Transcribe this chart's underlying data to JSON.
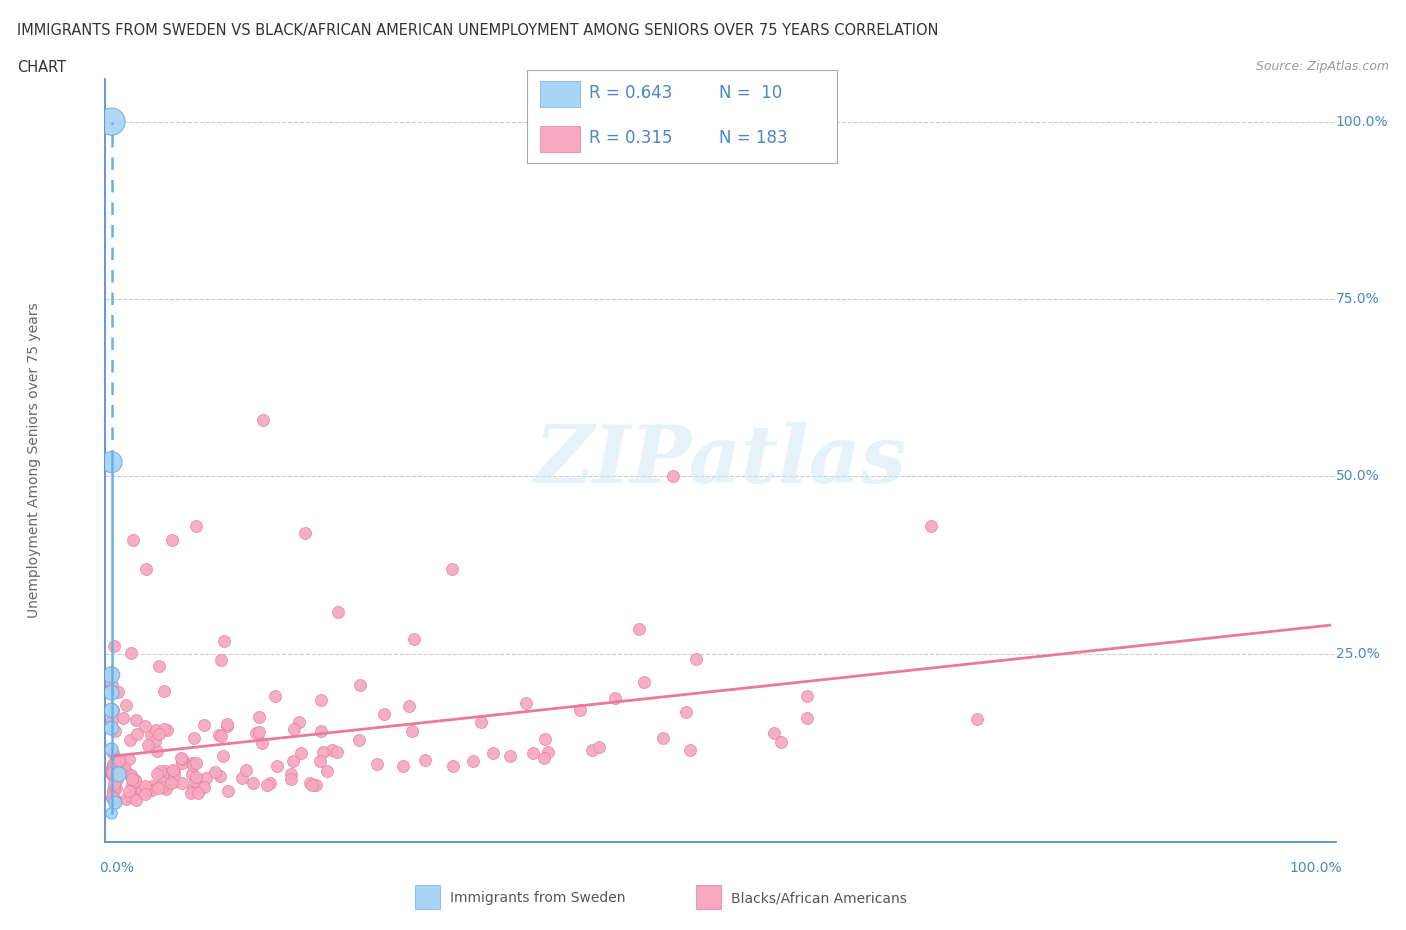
{
  "title_line1": "IMMIGRANTS FROM SWEDEN VS BLACK/AFRICAN AMERICAN UNEMPLOYMENT AMONG SENIORS OVER 75 YEARS CORRELATION",
  "title_line2": "CHART",
  "source": "Source: ZipAtlas.com",
  "ylabel": "Unemployment Among Seniors over 75 years",
  "ytick_labels": [
    "25.0%",
    "50.0%",
    "75.0%",
    "100.0%"
  ],
  "ytick_values": [
    0.25,
    0.5,
    0.75,
    1.0
  ],
  "title_color": "#333333",
  "source_color": "#999999",
  "axis_color": "#4a86c8",
  "grid_color": "#cccccc",
  "blue_scatter_color": "#a8d4f5",
  "blue_edge_color": "#6ab0e8",
  "pink_scatter_color": "#f5a8c0",
  "pink_edge_color": "#e87a9a",
  "blue_line_color": "#6ab0e8",
  "pink_line_color": "#e87a9a",
  "watermark_text": "ZIPatlas",
  "watermark_color": "#d0e8f5",
  "legend_R1": "R = 0.643",
  "legend_N1": "N =  10",
  "legend_R2": "R = 0.315",
  "legend_N2": "N = 183",
  "legend_color": "#4a86c8",
  "bottom_legend_color": "#555555",
  "blue_label": "Immigrants from Sweden",
  "pink_label": "Blacks/African Americans",
  "blue_points_x": [
    0.0,
    0.0,
    0.0,
    0.0,
    0.0,
    0.0,
    0.0,
    0.0,
    0.003,
    0.006
  ],
  "blue_points_y": [
    1.0,
    0.52,
    0.22,
    0.195,
    0.17,
    0.145,
    0.115,
    0.025,
    0.04,
    0.08
  ],
  "blue_sizes": [
    380,
    230,
    140,
    115,
    110,
    100,
    88,
    68,
    88,
    115
  ],
  "pink_trend_start": 0.04,
  "pink_trend_end": 0.19,
  "xlim": [
    -0.005,
    1.005
  ],
  "ylim": [
    -0.015,
    1.06
  ]
}
